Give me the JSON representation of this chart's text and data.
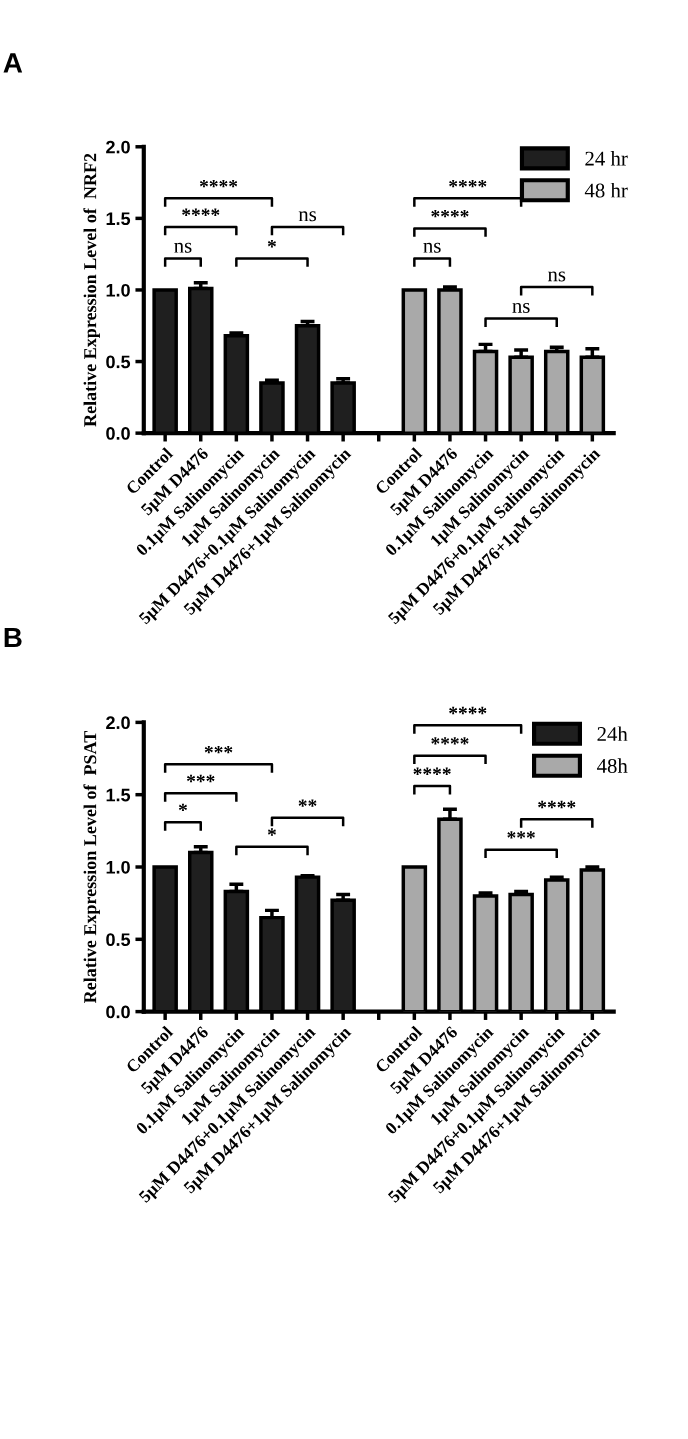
{
  "chart_data": [
    {
      "type": "bar",
      "title": "A",
      "ylabel": "Relative Expression Level of  NRF2",
      "categories": [
        "Control",
        "5µM D4476",
        "0.1µM Salinomycin",
        "1µM Salinomycin",
        "5µM D4476+0.1µM Salinomycin",
        "5µM D4476+1µM Salinomycin",
        null,
        "Control",
        "5µM D4476",
        "0.1µM Salinomycin",
        "1µM Salinomycin",
        "5µM D4476+0.1µM Salinomycin",
        "5µM D4476+1µM Salinomycin"
      ],
      "series": [
        {
          "name": "24 hr",
          "color": "#1f1f1f",
          "values": [
            1.0,
            1.01,
            0.68,
            0.35,
            0.75,
            0.35,
            null,
            null,
            null,
            null,
            null,
            null,
            null
          ],
          "errors": [
            null,
            [
              1.01,
              1.05
            ],
            [
              0.68,
              0.7
            ],
            [
              0.35,
              0.37
            ],
            [
              0.75,
              0.78
            ],
            [
              0.35,
              0.38
            ],
            null,
            null,
            null,
            null,
            null,
            null,
            null
          ]
        },
        {
          "name": "48 hr",
          "color": "#a9a9a9",
          "values": [
            null,
            null,
            null,
            null,
            null,
            null,
            null,
            1.0,
            1.0,
            0.57,
            0.53,
            0.57,
            0.53
          ],
          "errors": [
            null,
            null,
            null,
            null,
            null,
            null,
            null,
            null,
            [
              1.0,
              1.02
            ],
            [
              0.57,
              0.62
            ],
            [
              0.53,
              0.58
            ],
            [
              0.57,
              0.6
            ],
            [
              0.53,
              0.59
            ]
          ]
        }
      ],
      "ylim": [
        0,
        2
      ],
      "yticks": [
        {
          "value": 0,
          "label": "0.0"
        },
        {
          "value": 0.5,
          "label": "0.5"
        },
        {
          "value": 1,
          "label": "1.0"
        },
        {
          "value": 1.5,
          "label": "1.5"
        },
        {
          "value": 2,
          "label": "2.0"
        }
      ],
      "legend": "top right",
      "annotations": [
        "ns",
        "****",
        "****",
        "*",
        "ns",
        "ns",
        "****",
        "****",
        "ns",
        "ns"
      ]
    },
    {
      "type": "bar",
      "title": "B",
      "ylabel": "Relative Expression Level of  PSAT",
      "categories": [
        "Control",
        "5µM D4476",
        "0.1µM Salinomycin",
        "1µM Salinomycin",
        "5µM D4476+0.1µM Salinomycin",
        "5µM D4476+1µM Salinomycin",
        null,
        "Control",
        "5µM D4476",
        "0.1µM Salinomycin",
        "1µM Salinomycin",
        "5µM D4476+0.1µM Salinomycin",
        "5µM D4476+1µM Salinomycin"
      ],
      "series": [
        {
          "name": "24h",
          "color": "#1f1f1f",
          "values": [
            1.0,
            1.1,
            0.83,
            0.65,
            0.93,
            0.77,
            null,
            null,
            null,
            null,
            null,
            null,
            null
          ],
          "errors": [
            null,
            [
              1.1,
              1.14
            ],
            [
              0.83,
              0.88
            ],
            [
              0.65,
              0.7
            ],
            [
              0.93,
              0.94
            ],
            [
              0.77,
              0.81
            ],
            null,
            null,
            null,
            null,
            null,
            null,
            null
          ]
        },
        {
          "name": "48h",
          "color": "#a9a9a9",
          "values": [
            null,
            null,
            null,
            null,
            null,
            null,
            null,
            1.0,
            1.33,
            0.8,
            0.81,
            0.91,
            0.98
          ],
          "errors": [
            null,
            null,
            null,
            null,
            null,
            null,
            null,
            null,
            [
              1.33,
              1.4
            ],
            [
              0.8,
              0.82
            ],
            [
              0.81,
              0.83
            ],
            [
              0.91,
              0.93
            ],
            [
              0.98,
              1.0
            ]
          ]
        }
      ],
      "ylim": [
        0,
        2
      ],
      "yticks": [
        {
          "value": 0,
          "label": "0.0"
        },
        {
          "value": 0.5,
          "label": "0.5"
        },
        {
          "value": 1,
          "label": "1.0"
        },
        {
          "value": 1.5,
          "label": "1.5"
        },
        {
          "value": 2,
          "label": "2.0"
        }
      ],
      "legend": "top right",
      "annotations": [
        "*",
        "***",
        "***",
        "*",
        "**",
        "****",
        "****",
        "****",
        "***",
        "****"
      ]
    }
  ]
}
